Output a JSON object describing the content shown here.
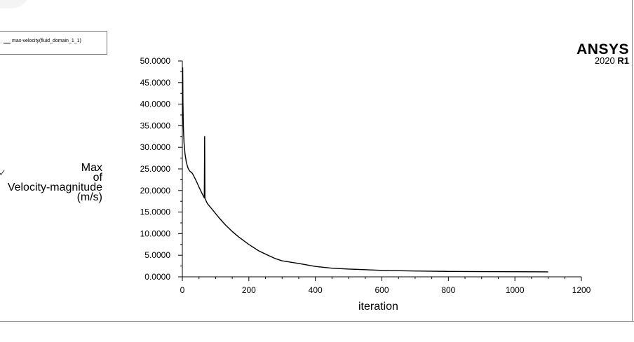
{
  "logo": {
    "name": "ANSYS",
    "version": "2020",
    "release": "R1"
  },
  "legend": {
    "entry": "max-velocity(fluid_domain_1_1)"
  },
  "axis": {
    "ylabel_lines": [
      "Max",
      "of",
      "Velocity-magnitude",
      "(m/s)"
    ],
    "xlabel": "iteration"
  },
  "chart_data": {
    "type": "line",
    "title": "",
    "xlabel": "iteration",
    "ylabel": "Max of Velocity-magnitude (m/s)",
    "xlim": [
      0,
      1200
    ],
    "ylim": [
      0,
      50
    ],
    "x_ticks": [
      0,
      200,
      400,
      600,
      800,
      1000,
      1200
    ],
    "x_tick_labels": [
      "0",
      "200",
      "400",
      "600",
      "800",
      "1000",
      "1200"
    ],
    "y_ticks": [
      0,
      5,
      10,
      15,
      20,
      25,
      30,
      35,
      40,
      45,
      50
    ],
    "y_tick_labels": [
      "0.0000",
      "5.0000",
      "10.0000",
      "15.0000",
      "20.0000",
      "25.0000",
      "30.0000",
      "35.0000",
      "40.0000",
      "45.0000",
      "50.0000"
    ],
    "grid": false,
    "legend_position": "top-left",
    "series": [
      {
        "name": "max-velocity(fluid_domain_1_1)",
        "color": "#000000",
        "points": [
          [
            1,
            48.5
          ],
          [
            2,
            40
          ],
          [
            3,
            35
          ],
          [
            5,
            31
          ],
          [
            8,
            28.5
          ],
          [
            12,
            26.5
          ],
          [
            17,
            25.2
          ],
          [
            22,
            24.5
          ],
          [
            30,
            24
          ],
          [
            40,
            22.5
          ],
          [
            50,
            20.8
          ],
          [
            60,
            19.2
          ],
          [
            66,
            18.3
          ],
          [
            67,
            32.5
          ],
          [
            68,
            18.2
          ],
          [
            75,
            17
          ],
          [
            90,
            15.6
          ],
          [
            110,
            13.7
          ],
          [
            130,
            12.0
          ],
          [
            150,
            10.5
          ],
          [
            170,
            9.2
          ],
          [
            200,
            7.5
          ],
          [
            230,
            6.0
          ],
          [
            260,
            4.9
          ],
          [
            280,
            4.2
          ],
          [
            300,
            3.7
          ],
          [
            350,
            3.1
          ],
          [
            400,
            2.4
          ],
          [
            450,
            2.0
          ],
          [
            500,
            1.8
          ],
          [
            600,
            1.5
          ],
          [
            700,
            1.35
          ],
          [
            800,
            1.25
          ],
          [
            900,
            1.2
          ],
          [
            1000,
            1.18
          ],
          [
            1100,
            1.15
          ]
        ]
      }
    ]
  }
}
